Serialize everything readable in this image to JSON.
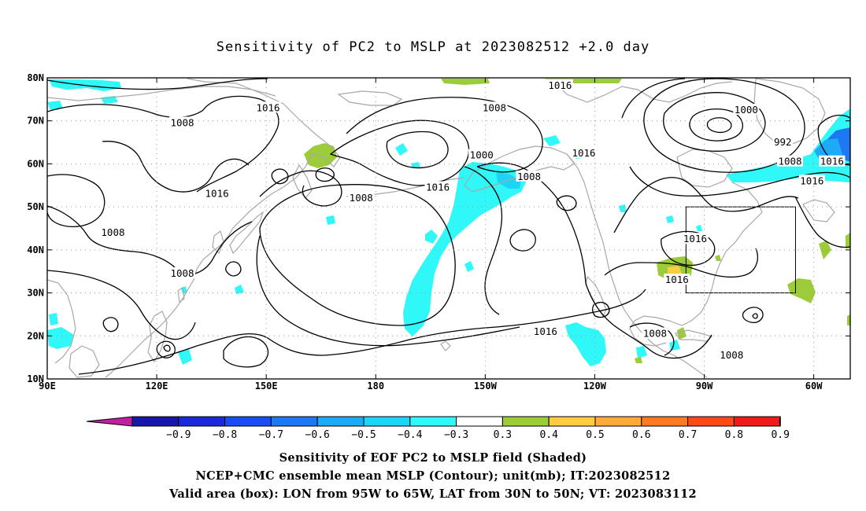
{
  "title": "Sensitivity of PC2 to MSLP at 2023082512 +2.0 day",
  "captions": [
    "Sensitivity of EOF PC2 to MSLP field (Shaded)",
    "NCEP+CMC ensemble mean MSLP (Contour); unit(mb); IT:2023082512",
    "Valid area (box): LON from 95W to 65W, LAT from 30N to 50N; VT: 2023083112"
  ],
  "map": {
    "lon_range": [
      90,
      310
    ],
    "lat_range": [
      10,
      80
    ],
    "lon_ticks": [
      {
        "lon": 90,
        "label": "90E"
      },
      {
        "lon": 120,
        "label": "120E"
      },
      {
        "lon": 150,
        "label": "150E"
      },
      {
        "lon": 180,
        "label": "180"
      },
      {
        "lon": 210,
        "label": "150W"
      },
      {
        "lon": 240,
        "label": "120W"
      },
      {
        "lon": 270,
        "label": "90W"
      },
      {
        "lon": 300,
        "label": "60W"
      }
    ],
    "lat_ticks": [
      {
        "lat": 10,
        "label": "10N"
      },
      {
        "lat": 20,
        "label": "20N"
      },
      {
        "lat": 30,
        "label": "30N"
      },
      {
        "lat": 40,
        "label": "40N"
      },
      {
        "lat": 50,
        "label": "50N"
      },
      {
        "lat": 60,
        "label": "60N"
      },
      {
        "lat": 70,
        "label": "70N"
      },
      {
        "lat": 80,
        "label": "80N"
      }
    ],
    "grid": "dotted",
    "valid_box": {
      "lon_min": 265,
      "lon_max": 295,
      "lat_min": 30,
      "lat_max": 50
    },
    "contour_labels": [
      {
        "text": "1016",
        "lon": 150.5,
        "lat": 73
      },
      {
        "text": "1008",
        "lon": 127,
        "lat": 69.5
      },
      {
        "text": "1016",
        "lon": 136.5,
        "lat": 53
      },
      {
        "text": "1008",
        "lon": 108,
        "lat": 44
      },
      {
        "text": "1008",
        "lon": 127,
        "lat": 34.5
      },
      {
        "text": "1008",
        "lon": 176,
        "lat": 52
      },
      {
        "text": "1016",
        "lon": 197,
        "lat": 54.5
      },
      {
        "text": "1000",
        "lon": 209,
        "lat": 62
      },
      {
        "text": "1008",
        "lon": 222,
        "lat": 57
      },
      {
        "text": "1016",
        "lon": 237,
        "lat": 62.5
      },
      {
        "text": "1008",
        "lon": 212.5,
        "lat": 73
      },
      {
        "text": "1016",
        "lon": 230.5,
        "lat": 78.2
      },
      {
        "text": "1000",
        "lon": 281.5,
        "lat": 72.5
      },
      {
        "text": "992",
        "lon": 291.5,
        "lat": 65
      },
      {
        "text": "1008",
        "lon": 293.5,
        "lat": 60.5
      },
      {
        "text": "1016",
        "lon": 305,
        "lat": 60.5
      },
      {
        "text": "1016",
        "lon": 299.5,
        "lat": 56
      },
      {
        "text": "1016",
        "lon": 267.5,
        "lat": 42.5
      },
      {
        "text": "1016",
        "lon": 262.5,
        "lat": 33
      },
      {
        "text": "1016",
        "lon": 226.5,
        "lat": 21
      },
      {
        "text": "1008",
        "lon": 256.5,
        "lat": 20.5
      },
      {
        "text": "1008",
        "lon": 277.5,
        "lat": 15.5
      }
    ]
  },
  "colorbar": {
    "colors": [
      "#1818a8",
      "#1a2ad8",
      "#1a4cf4",
      "#1e78f4",
      "#1eaaf6",
      "#1ed4f6",
      "#30f8f8",
      "#ffffff",
      "#9ccc3a",
      "#ffcc44",
      "#ffaa3a",
      "#ff7a24",
      "#ff4a18",
      "#f01a1a"
    ],
    "low_arrow_color": "#c020a0",
    "high_arrow_color": "#f8a8d8",
    "labels": [
      "−0.9",
      "−0.8",
      "−0.7",
      "−0.6",
      "−0.5",
      "−0.4",
      "−0.3",
      "0.3",
      "0.4",
      "0.5",
      "0.6",
      "0.7",
      "0.8",
      "0.9"
    ]
  }
}
